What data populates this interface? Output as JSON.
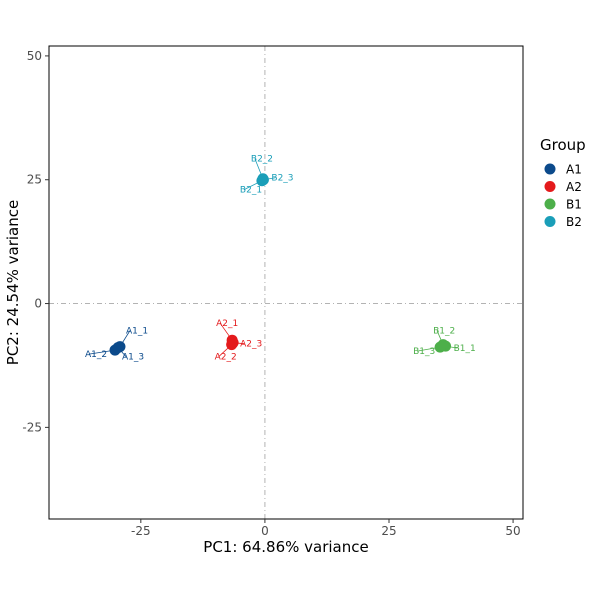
{
  "chart_data": {
    "type": "scatter",
    "title": "",
    "xlabel": "PC1: 64.86% variance",
    "ylabel": "PC2: 24.54% variance",
    "xlim": [
      -43.5,
      52
    ],
    "ylim": [
      -43.5,
      52
    ],
    "x_ticks": [
      -25,
      0,
      25,
      50
    ],
    "y_ticks": [
      -25,
      0,
      25,
      50
    ],
    "reference_lines": {
      "x": 0,
      "y": 0,
      "style": "dashed"
    },
    "legend": {
      "title": "Group",
      "position": "right"
    },
    "series": [
      {
        "name": "A1",
        "color": "#0b4a8b",
        "points": [
          {
            "label": "A1_1",
            "x": -29.2,
            "y": -8.7
          },
          {
            "label": "A1_2",
            "x": -30.2,
            "y": -9.4
          },
          {
            "label": "A1_3",
            "x": -29.6,
            "y": -8.9
          }
        ]
      },
      {
        "name": "A2",
        "color": "#e41a1c",
        "points": [
          {
            "label": "A2_1",
            "x": -6.6,
            "y": -7.4
          },
          {
            "label": "A2_2",
            "x": -6.7,
            "y": -8.3
          },
          {
            "label": "A2_3",
            "x": -6.4,
            "y": -7.9
          }
        ]
      },
      {
        "name": "B1",
        "color": "#4daf4a",
        "points": [
          {
            "label": "B1_1",
            "x": 36.4,
            "y": -8.6
          },
          {
            "label": "B1_2",
            "x": 35.9,
            "y": -8.3
          },
          {
            "label": "B1_3",
            "x": 35.3,
            "y": -8.8
          }
        ]
      },
      {
        "name": "B2",
        "color": "#1a9eb8",
        "points": [
          {
            "label": "B2_1",
            "x": -0.6,
            "y": 24.8
          },
          {
            "label": "B2_2",
            "x": -0.4,
            "y": 25.2
          },
          {
            "label": "B2_3",
            "x": -0.3,
            "y": 25.0
          }
        ]
      }
    ]
  }
}
